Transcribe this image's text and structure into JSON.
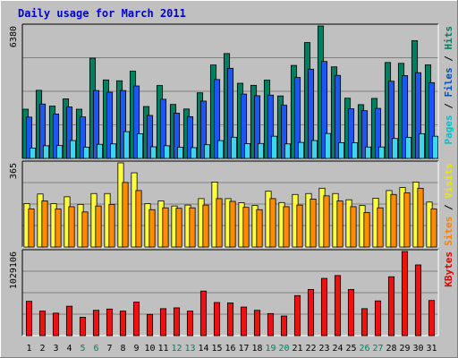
{
  "chart_data": {
    "type": "bar",
    "title": "Daily usage for March 2011",
    "categories": [
      "1",
      "2",
      "3",
      "4",
      "5",
      "6",
      "7",
      "8",
      "9",
      "10",
      "11",
      "12",
      "13",
      "14",
      "15",
      "16",
      "17",
      "18",
      "19",
      "20",
      "21",
      "22",
      "23",
      "24",
      "25",
      "26",
      "27",
      "28",
      "29",
      "30",
      "31"
    ],
    "weekend_days": [
      "5",
      "6",
      "12",
      "13",
      "19",
      "20",
      "26",
      "27"
    ],
    "panels": [
      {
        "name": "requests",
        "max_label": "6380",
        "ylim": [
          0,
          6380
        ],
        "right_label": [
          {
            "text": "Pages",
            "color": "#00c0d0"
          },
          {
            "text": " / ",
            "color": "#000000"
          },
          {
            "text": "Files",
            "color": "#0050c0"
          },
          {
            "text": " / ",
            "color": "#000000"
          },
          {
            "text": "Hits",
            "color": "#008060"
          }
        ],
        "series": [
          {
            "name": "Hits",
            "color": "#008060",
            "values": [
              2370,
              3280,
              2520,
              2870,
              2370,
              4830,
              3780,
              3740,
              4200,
              2500,
              3510,
              2600,
              2380,
              3160,
              4500,
              5050,
              3620,
              3520,
              3770,
              3010,
              4480,
              5580,
              6380,
              4410,
              2900,
              2590,
              2890,
              4620,
              4580,
              5670,
              4510
            ]
          },
          {
            "name": "Files",
            "color": "#1c58f0",
            "values": [
              1990,
              2620,
              2140,
              2480,
              2000,
              3270,
              3190,
              3270,
              3490,
              2070,
              2850,
              2180,
              2010,
              2760,
              3800,
              4340,
              3100,
              3020,
              3050,
              2560,
              3900,
              4300,
              4670,
              4000,
              2390,
              2300,
              2410,
              3720,
              3990,
              4130,
              3650
            ]
          },
          {
            "name": "Pages",
            "color": "#3cd6f0",
            "values": [
              500,
              610,
              620,
              860,
              540,
              680,
              700,
              1290,
              1190,
              560,
              610,
              540,
              520,
              660,
              860,
              1020,
              710,
              720,
              1070,
              700,
              770,
              860,
              1200,
              760,
              750,
              550,
              550,
              960,
              1010,
              1190,
              1070
            ]
          }
        ]
      },
      {
        "name": "visits",
        "max_label": "365",
        "ylim": [
          0,
          365
        ],
        "right_label": [
          {
            "text": "Sites",
            "color": "#ff8000"
          },
          {
            "text": " / ",
            "color": "#000000"
          },
          {
            "text": "Visits",
            "color": "#e8e800"
          }
        ],
        "series": [
          {
            "name": "Visits",
            "color": "#ffff40",
            "values": [
              188,
              230,
              188,
              218,
              185,
              232,
              232,
              365,
              322,
              188,
              200,
              178,
              182,
              210,
              282,
              210,
              192,
              180,
              242,
              193,
              228,
              232,
              255,
              232,
              205,
              180,
              212,
              245,
              258,
              282,
              195
            ]
          },
          {
            "name": "Sites",
            "color": "#ff8c00",
            "values": [
              165,
              200,
              165,
              175,
              152,
              178,
              185,
              280,
              245,
              162,
              170,
              168,
              170,
              182,
              210,
              198,
              172,
              162,
              210,
              175,
              182,
              208,
              222,
              200,
              175,
              150,
              170,
              228,
              235,
              255,
              165
            ]
          }
        ]
      },
      {
        "name": "kbytes",
        "max_label": "1029106",
        "ylim": [
          0,
          1029106
        ],
        "right_label": [
          {
            "text": "KBytes",
            "color": "#e00000"
          }
        ],
        "series": [
          {
            "name": "KBytes",
            "color": "#ef1010",
            "values": [
              420000,
              300000,
              275000,
              360000,
              225000,
              310000,
              325000,
              300000,
              410000,
              260000,
              330000,
              340000,
              300000,
              545000,
              405000,
              400000,
              350000,
              310000,
              270000,
              240000,
              490000,
              565000,
              700000,
              735000,
              565000,
              330000,
              425000,
              720000,
              1029106,
              865000,
              430000
            ]
          }
        ]
      }
    ]
  }
}
